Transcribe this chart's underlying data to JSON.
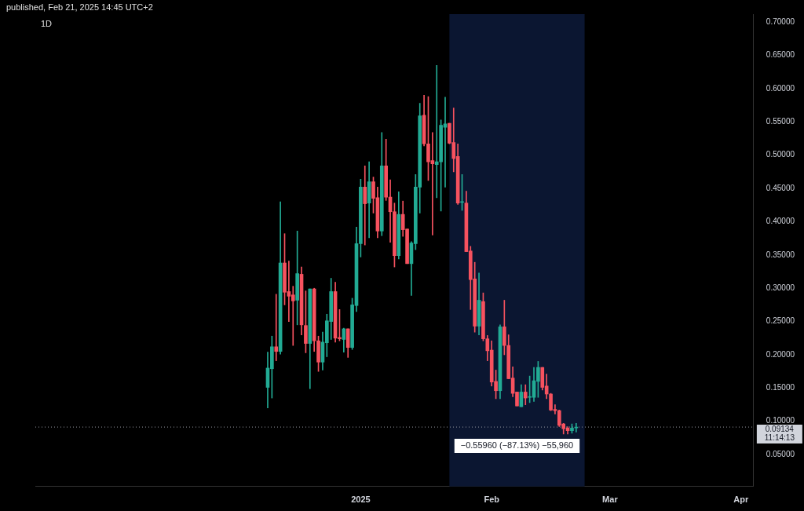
{
  "chart_data": {
    "type": "candlestick",
    "title": "1D",
    "subtitle": "published, Feb 21, 2025 14:45 UTC+2",
    "x": [
      "2024-12-10",
      "2024-12-11",
      "2024-12-12",
      "2024-12-13",
      "2024-12-14",
      "2024-12-15",
      "2024-12-16",
      "2024-12-17",
      "2024-12-18",
      "2024-12-19",
      "2024-12-20",
      "2024-12-21",
      "2024-12-22",
      "2024-12-23",
      "2024-12-24",
      "2024-12-25",
      "2024-12-26",
      "2024-12-27",
      "2024-12-28",
      "2024-12-29",
      "2024-12-30",
      "2024-12-31",
      "2025-01-01",
      "2025-01-02",
      "2025-01-03",
      "2025-01-04",
      "2025-01-05",
      "2025-01-06",
      "2025-01-07",
      "2025-01-08",
      "2025-01-09",
      "2025-01-10",
      "2025-01-11",
      "2025-01-12",
      "2025-01-13",
      "2025-01-14",
      "2025-01-15",
      "2025-01-16",
      "2025-01-17",
      "2025-01-18",
      "2025-01-19",
      "2025-01-20",
      "2025-01-21",
      "2025-01-22",
      "2025-01-23",
      "2025-01-24",
      "2025-01-25",
      "2025-01-26",
      "2025-01-27",
      "2025-01-28",
      "2025-01-29",
      "2025-01-30",
      "2025-01-31",
      "2025-02-01",
      "2025-02-02",
      "2025-02-03",
      "2025-02-04",
      "2025-02-05",
      "2025-02-06",
      "2025-02-07",
      "2025-02-08",
      "2025-02-09",
      "2025-02-10",
      "2025-02-11",
      "2025-02-12",
      "2025-02-13",
      "2025-02-14",
      "2025-02-15",
      "2025-02-16",
      "2025-02-17",
      "2025-02-18",
      "2025-02-19",
      "2025-02-20",
      "2025-02-21"
    ],
    "ohlc": [
      [
        0.151,
        0.204,
        0.12,
        0.18
      ],
      [
        0.179,
        0.228,
        0.135,
        0.212
      ],
      [
        0.212,
        0.291,
        0.191,
        0.205
      ],
      [
        0.205,
        0.43,
        0.201,
        0.338
      ],
      [
        0.338,
        0.382,
        0.275,
        0.294
      ],
      [
        0.295,
        0.341,
        0.25,
        0.288
      ],
      [
        0.29,
        0.303,
        0.214,
        0.281
      ],
      [
        0.282,
        0.386,
        0.245,
        0.322
      ],
      [
        0.321,
        0.332,
        0.23,
        0.245
      ],
      [
        0.244,
        0.296,
        0.203,
        0.217
      ],
      [
        0.217,
        0.299,
        0.149,
        0.299
      ],
      [
        0.299,
        0.3,
        0.205,
        0.221
      ],
      [
        0.221,
        0.228,
        0.175,
        0.189
      ],
      [
        0.189,
        0.234,
        0.177,
        0.219
      ],
      [
        0.218,
        0.261,
        0.197,
        0.251
      ],
      [
        0.25,
        0.315,
        0.223,
        0.295
      ],
      [
        0.295,
        0.309,
        0.219,
        0.225
      ],
      [
        0.226,
        0.268,
        0.221,
        0.224
      ],
      [
        0.223,
        0.24,
        0.204,
        0.239
      ],
      [
        0.239,
        0.239,
        0.196,
        0.211
      ],
      [
        0.211,
        0.285,
        0.208,
        0.275
      ],
      [
        0.274,
        0.392,
        0.265,
        0.367
      ],
      [
        0.367,
        0.464,
        0.347,
        0.452
      ],
      [
        0.452,
        0.484,
        0.365,
        0.427
      ],
      [
        0.428,
        0.49,
        0.376,
        0.46
      ],
      [
        0.46,
        0.467,
        0.413,
        0.435
      ],
      [
        0.436,
        0.452,
        0.376,
        0.386
      ],
      [
        0.386,
        0.534,
        0.379,
        0.484
      ],
      [
        0.484,
        0.524,
        0.432,
        0.437
      ],
      [
        0.437,
        0.463,
        0.369,
        0.415
      ],
      [
        0.415,
        0.428,
        0.332,
        0.349
      ],
      [
        0.349,
        0.445,
        0.344,
        0.411
      ],
      [
        0.411,
        0.431,
        0.378,
        0.388
      ],
      [
        0.389,
        0.389,
        0.337,
        0.337
      ],
      [
        0.337,
        0.37,
        0.289,
        0.368
      ],
      [
        0.367,
        0.471,
        0.358,
        0.452
      ],
      [
        0.452,
        0.578,
        0.413,
        0.559
      ],
      [
        0.56,
        0.59,
        0.514,
        0.517
      ],
      [
        0.517,
        0.588,
        0.462,
        0.49
      ],
      [
        0.492,
        0.534,
        0.38,
        0.487
      ],
      [
        0.486,
        0.635,
        0.436,
        0.49
      ],
      [
        0.49,
        0.553,
        0.416,
        0.545
      ],
      [
        0.542,
        0.587,
        0.452,
        0.547
      ],
      [
        0.548,
        0.548,
        0.517,
        0.518
      ],
      [
        0.519,
        0.571,
        0.475,
        0.495
      ],
      [
        0.498,
        0.517,
        0.426,
        0.428
      ],
      [
        0.429,
        0.471,
        0.417,
        0.43
      ],
      [
        0.428,
        0.446,
        0.355,
        0.355
      ],
      [
        0.356,
        0.363,
        0.268,
        0.313
      ],
      [
        0.314,
        0.339,
        0.234,
        0.243
      ],
      [
        0.243,
        0.323,
        0.23,
        0.282
      ],
      [
        0.28,
        0.293,
        0.221,
        0.224
      ],
      [
        0.224,
        0.229,
        0.191,
        0.206
      ],
      [
        0.207,
        0.221,
        0.153,
        0.159
      ],
      [
        0.16,
        0.177,
        0.134,
        0.146
      ],
      [
        0.146,
        0.245,
        0.134,
        0.242
      ],
      [
        0.242,
        0.282,
        0.2,
        0.214
      ],
      [
        0.214,
        0.23,
        0.164,
        0.164
      ],
      [
        0.165,
        0.182,
        0.137,
        0.142
      ],
      [
        0.144,
        0.144,
        0.123,
        0.123
      ],
      [
        0.122,
        0.155,
        0.122,
        0.144
      ],
      [
        0.144,
        0.155,
        0.125,
        0.135
      ],
      [
        0.136,
        0.168,
        0.128,
        0.137
      ],
      [
        0.136,
        0.181,
        0.13,
        0.161
      ],
      [
        0.16,
        0.19,
        0.136,
        0.181
      ],
      [
        0.181,
        0.181,
        0.147,
        0.151
      ],
      [
        0.153,
        0.171,
        0.134,
        0.141
      ],
      [
        0.141,
        0.142,
        0.116,
        0.117
      ],
      [
        0.118,
        0.125,
        0.111,
        0.116
      ],
      [
        0.116,
        0.117,
        0.092,
        0.094
      ],
      [
        0.096,
        0.097,
        0.081,
        0.089
      ],
      [
        0.09,
        0.092,
        0.081,
        0.086
      ],
      [
        0.086,
        0.096,
        0.082,
        0.09
      ],
      [
        0.09,
        0.097,
        0.084,
        0.0913
      ]
    ],
    "colors": [
      "#22ab94",
      "#22ab94",
      "#f7525f",
      "#22ab94",
      "#f7525f",
      "#f7525f",
      "#f7525f",
      "#22ab94",
      "#f7525f",
      "#f7525f",
      "#22ab94",
      "#f7525f",
      "#f7525f",
      "#22ab94",
      "#22ab94",
      "#22ab94",
      "#f7525f",
      "#f7525f",
      "#22ab94",
      "#f7525f",
      "#22ab94",
      "#22ab94",
      "#22ab94",
      "#f7525f",
      "#22ab94",
      "#f7525f",
      "#f7525f",
      "#22ab94",
      "#f7525f",
      "#f7525f",
      "#f7525f",
      "#22ab94",
      "#f7525f",
      "#f7525f",
      "#22ab94",
      "#22ab94",
      "#22ab94",
      "#f7525f",
      "#f7525f",
      "#f7525f",
      "#22ab94",
      "#22ab94",
      "#22ab94",
      "#f7525f",
      "#f7525f",
      "#f7525f",
      "#22ab94",
      "#f7525f",
      "#f7525f",
      "#f7525f",
      "#22ab94",
      "#f7525f",
      "#f7525f",
      "#f7525f",
      "#f7525f",
      "#22ab94",
      "#f7525f",
      "#f7525f",
      "#f7525f",
      "#f7525f",
      "#22ab94",
      "#f7525f",
      "#22ab94",
      "#22ab94",
      "#22ab94",
      "#f7525f",
      "#f7525f",
      "#f7525f",
      "#f7525f",
      "#f7525f",
      "#f7525f",
      "#f7525f",
      "#22ab94",
      "#22ab94"
    ],
    "xlim": [
      "2024-10-16",
      "2025-04-04"
    ],
    "xticks": [
      {
        "value": "2025-01-01",
        "label": "2025"
      },
      {
        "value": "2025-02-01",
        "label": "Feb"
      },
      {
        "value": "2025-03-01",
        "label": "Mar"
      },
      {
        "value": "2025-04-01",
        "label": "Apr"
      }
    ],
    "ylim": [
      0.002,
      0.712
    ],
    "yticks": [
      {
        "value": 0.05,
        "label": "0.05000"
      },
      {
        "value": 0.1,
        "label": "0.10000"
      },
      {
        "value": 0.15,
        "label": "0.15000"
      },
      {
        "value": 0.2,
        "label": "0.20000"
      },
      {
        "value": 0.25,
        "label": "0.25000"
      },
      {
        "value": 0.3,
        "label": "0.30000"
      },
      {
        "value": 0.35,
        "label": "0.35000"
      },
      {
        "value": 0.4,
        "label": "0.40000"
      },
      {
        "value": 0.45,
        "label": "0.45000"
      },
      {
        "value": 0.5,
        "label": "0.50000"
      },
      {
        "value": 0.55,
        "label": "0.55000"
      },
      {
        "value": 0.6,
        "label": "0.60000"
      },
      {
        "value": 0.65,
        "label": "0.65000"
      },
      {
        "value": 0.7,
        "label": "0.70000"
      }
    ],
    "ref_lines": [
      {
        "axis": "y",
        "value": 0.09134,
        "label": "0.09134",
        "line_style": "dotted",
        "color": "#9598a1"
      }
    ],
    "bands": [
      {
        "axis": "x",
        "from": "2025-01-22",
        "to": "2025-02-23",
        "color": "#0b1631"
      }
    ],
    "annotations": [
      "−0.55960 (−87.13%) −55,960",
      "11:14:13"
    ]
  }
}
